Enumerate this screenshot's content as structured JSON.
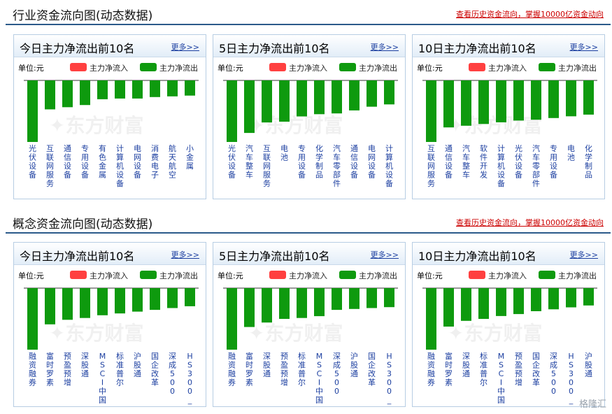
{
  "sections": [
    {
      "title": "行业资金流向图(动态数据)",
      "link": "查看历史资金流向，掌握10000亿资金动向",
      "panels": [
        {
          "title": "今日主力净流出前10名",
          "more": "更多>>",
          "categories": [
            "光伏设备",
            "互联网服务",
            "通信设备",
            "专用设备",
            "有色金属",
            "计算机设备",
            "电网设备",
            "消费电子",
            "航天航空",
            "小金属"
          ]
        },
        {
          "title": "5日主力净流出前10名",
          "more": "更多>>",
          "categories": [
            "光伏设备",
            "汽车整车",
            "互联网服务",
            "电池",
            "专用设备",
            "化学制品",
            "汽车零部件",
            "通信设备",
            "电网设备",
            "计算机设备"
          ]
        },
        {
          "title": "10日主力净流出前10名",
          "more": "更多>>",
          "categories": [
            "互联网服务",
            "通信设备",
            "汽车整车",
            "软件开发",
            "计算机设备",
            "光伏设备",
            "汽车零部件",
            "专用设备",
            "电池",
            "化学制品"
          ]
        }
      ]
    },
    {
      "title": "概念资金流向图(动态数据)",
      "link": "查看历史资金流向，掌握10000亿资金动向",
      "panels": [
        {
          "title": "今日主力净流出前10名",
          "more": "更多>>",
          "categories": [
            "融资融券",
            "富时罗素",
            "预盈预增",
            "深股通",
            "MSCI中国",
            "标准普尔",
            "沪股通",
            "国企改革",
            "深成500",
            "HS300_"
          ]
        },
        {
          "title": "5日主力净流出前10名",
          "more": "更多>>",
          "categories": [
            "融资融券",
            "富时罗素",
            "深股通",
            "预盈预增",
            "标准普尔",
            "MSCI中国",
            "深成500",
            "沪股通",
            "国企改革",
            "HS300_"
          ]
        },
        {
          "title": "10日主力净流出前10名",
          "more": "更多>>",
          "categories": [
            "融资融券",
            "富时罗素",
            "深股通",
            "标准普尔",
            "MSCI中国",
            "预盈预增",
            "国企改革",
            "深成500",
            "HS300_",
            "沪股通"
          ]
        }
      ]
    }
  ],
  "legend": {
    "unit": "单位:元",
    "inflow": "主力净流入",
    "outflow": "主力净流出"
  },
  "colors": {
    "inflow": "#ff4040",
    "outflow": "#0e9a0e",
    "label": "#1c3fa0",
    "header_rule": "#2b5a8a"
  },
  "watermark": "东方财富",
  "brand": "格隆汇",
  "chart_data": [
    {
      "type": "bar",
      "title": "今日主力净流出前10名",
      "series_name": "主力净流出",
      "categories": [
        "光伏设备",
        "互联网服务",
        "通信设备",
        "专用设备",
        "有色金属",
        "计算机设备",
        "电网设备",
        "消费电子",
        "航天航空",
        "小金属"
      ],
      "values": [
        -85,
        -40,
        -37,
        -34,
        -26,
        -25,
        -25,
        -23,
        -22,
        -21
      ]
    },
    {
      "type": "bar",
      "title": "5日主力净流出前10名",
      "series_name": "主力净流出",
      "categories": [
        "光伏设备",
        "汽车整车",
        "互联网服务",
        "电池",
        "专用设备",
        "化学制品",
        "汽车零部件",
        "通信设备",
        "电网设备",
        "计算机设备"
      ],
      "values": [
        -82,
        -70,
        -56,
        -55,
        -48,
        -45,
        -44,
        -40,
        -35,
        -32
      ]
    },
    {
      "type": "bar",
      "title": "10日主力净流出前10名",
      "series_name": "主力净流出",
      "categories": [
        "互联网服务",
        "通信设备",
        "汽车整车",
        "软件开发",
        "计算机设备",
        "光伏设备",
        "汽车零部件",
        "专用设备",
        "电池",
        "化学制品"
      ],
      "values": [
        -72,
        -55,
        -53,
        -51,
        -49,
        -47,
        -46,
        -44,
        -42,
        -40
      ]
    },
    {
      "type": "bar",
      "title": "今日主力净流出前10名",
      "series_name": "主力净流出",
      "categories": [
        "融资融券",
        "富时罗素",
        "预盈预增",
        "深股通",
        "MSCI中国",
        "标准普尔",
        "沪股通",
        "国企改革",
        "深成500",
        "HS300_"
      ],
      "values": [
        -68,
        -40,
        -35,
        -33,
        -30,
        -28,
        -26,
        -24,
        -22,
        -20
      ]
    },
    {
      "type": "bar",
      "title": "5日主力净流出前10名",
      "series_name": "主力净流出",
      "categories": [
        "融资融券",
        "富时罗素",
        "深股通",
        "预盈预增",
        "标准普尔",
        "MSCI中国",
        "深成500",
        "沪股通",
        "国企改革",
        "HS300_"
      ],
      "values": [
        -68,
        -43,
        -38,
        -34,
        -33,
        -31,
        -24,
        -23,
        -22,
        -21
      ]
    },
    {
      "type": "bar",
      "title": "10日主力净流出前10名",
      "series_name": "主力净流出",
      "categories": [
        "融资融券",
        "富时罗素",
        "深股通",
        "标准普尔",
        "MSCI中国",
        "预盈预增",
        "国企改革",
        "深成500",
        "HS300_",
        "沪股通"
      ],
      "values": [
        -64,
        -40,
        -34,
        -32,
        -29,
        -27,
        -24,
        -22,
        -20,
        -18
      ]
    }
  ]
}
